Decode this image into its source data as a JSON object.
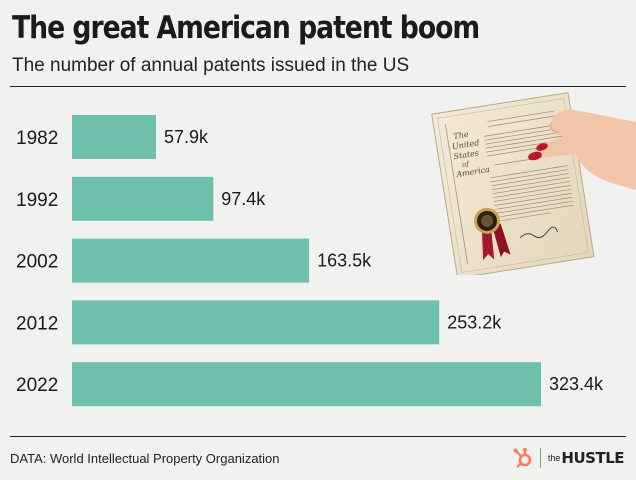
{
  "header": {
    "title": "The great American patent boom",
    "subtitle": "The number of annual patents issued in the US"
  },
  "chart_data": {
    "type": "bar",
    "orientation": "horizontal",
    "title": "The great American patent boom",
    "subtitle": "The number of annual patents issued in the US",
    "categories": [
      "1982",
      "1992",
      "2002",
      "2012",
      "2022"
    ],
    "values": [
      57.9,
      97.4,
      163.5,
      253.2,
      323.4
    ],
    "value_labels": [
      "57.9k",
      "97.4k",
      "163.5k",
      "253.2k",
      "323.4k"
    ],
    "unit": "thousands",
    "xlim": [
      0,
      323.4
    ],
    "grid": false,
    "bar_color": "#6dc0ab"
  },
  "footer": {
    "source": "DATA: World Intellectual Property Organization",
    "brand_the": "the",
    "brand_name": "HUSTLE"
  },
  "image": {
    "document_heading": "The United States of America",
    "icon": "hand-holding-patent-certificate"
  },
  "colors": {
    "background": "#f1f1f0",
    "bar": "#6dc0ab",
    "text": "#1a1a1a",
    "brand_accent": "#ff7a59"
  }
}
